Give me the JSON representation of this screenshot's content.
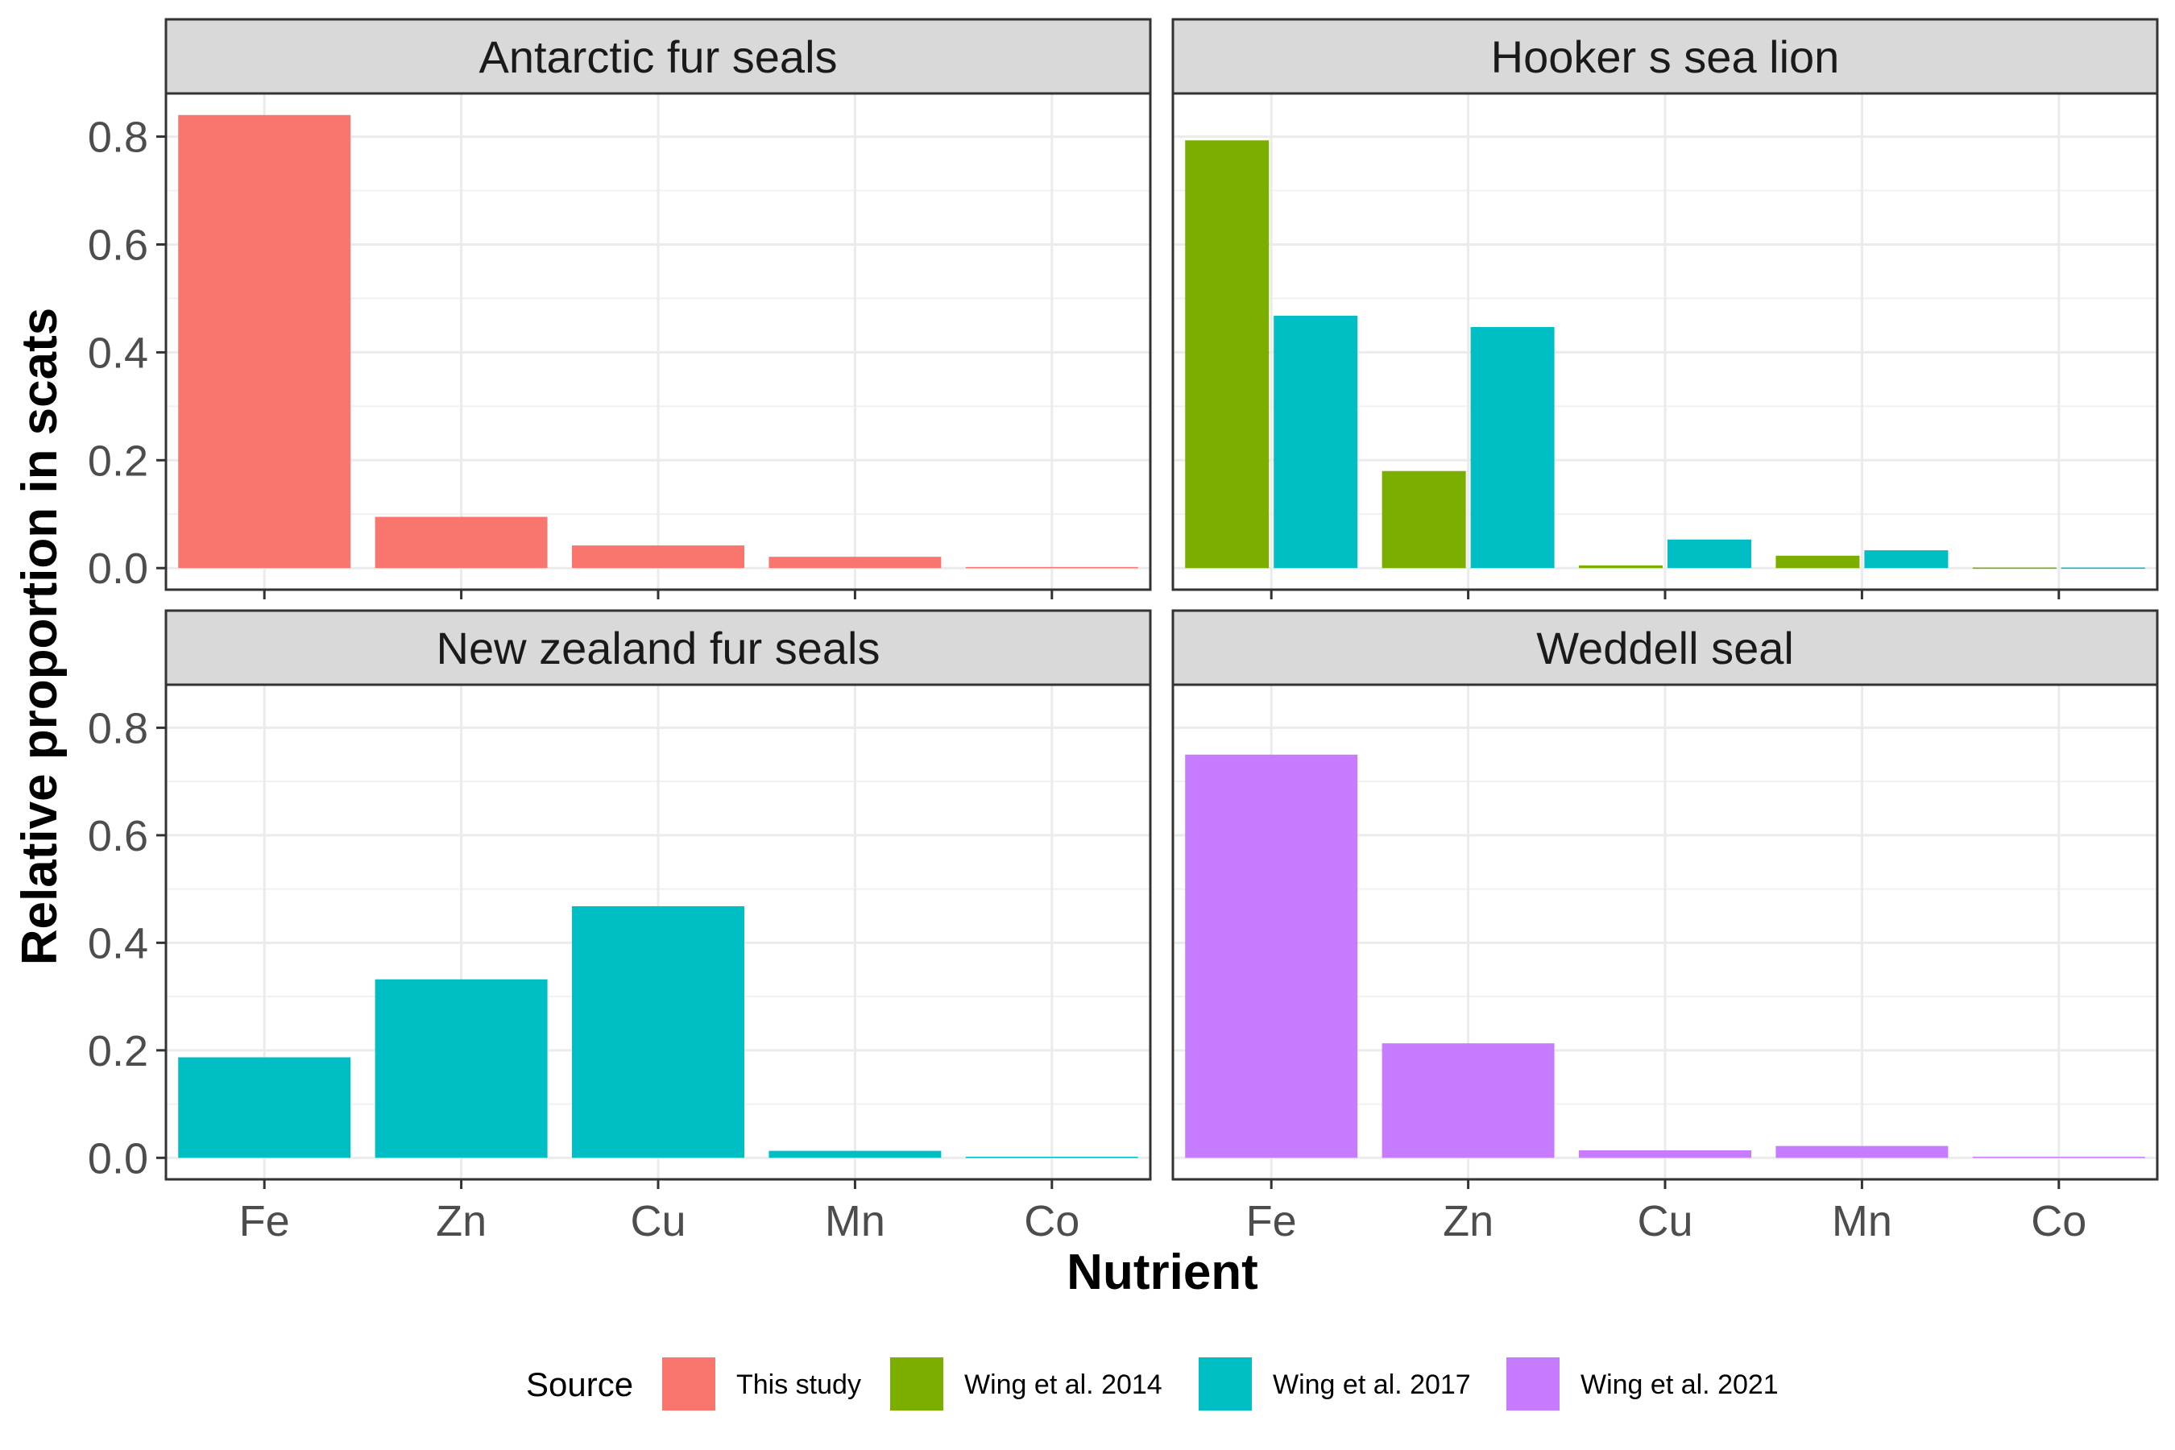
{
  "chart_data": {
    "type": "bar",
    "layout": "facet-grid-2x2",
    "xlabel": "Nutrient",
    "ylabel": "Relative proportion in scats",
    "categories": [
      "Fe",
      "Zn",
      "Cu",
      "Mn",
      "Co"
    ],
    "ylim": [
      -0.04,
      0.88
    ],
    "yticks": [
      0.0,
      0.2,
      0.4,
      0.6,
      0.8
    ],
    "ytick_labels": [
      "0.0",
      "0.2",
      "0.4",
      "0.6",
      "0.8"
    ],
    "grid": true,
    "legend": {
      "title": "Source",
      "position": "bottom",
      "entries": [
        {
          "name": "This study",
          "color": "#F8766D"
        },
        {
          "name": "Wing et al. 2014",
          "color": "#7CAE00"
        },
        {
          "name": "Wing et al. 2017",
          "color": "#00BFC4"
        },
        {
          "name": "Wing et al. 2021",
          "color": "#C77CFF"
        }
      ]
    },
    "panels": [
      {
        "title": "Antarctic fur seals",
        "series": [
          {
            "name": "This study",
            "values": [
              0.84,
              0.095,
              0.042,
              0.021,
              0.002
            ]
          }
        ]
      },
      {
        "title": "Hooker s sea lion",
        "series": [
          {
            "name": "Wing et al. 2014",
            "values": [
              0.793,
              0.18,
              0.005,
              0.023,
              0.001
            ]
          },
          {
            "name": "Wing et al. 2017",
            "values": [
              0.468,
              0.447,
              0.053,
              0.033,
              0.001
            ]
          }
        ]
      },
      {
        "title": "New zealand fur seals",
        "series": [
          {
            "name": "Wing et al. 2017",
            "values": [
              0.187,
              0.332,
              0.468,
              0.013,
              0.002
            ]
          }
        ]
      },
      {
        "title": "Weddell seal",
        "series": [
          {
            "name": "Wing et al. 2021",
            "values": [
              0.75,
              0.213,
              0.014,
              0.022,
              0.002
            ]
          }
        ]
      }
    ]
  }
}
